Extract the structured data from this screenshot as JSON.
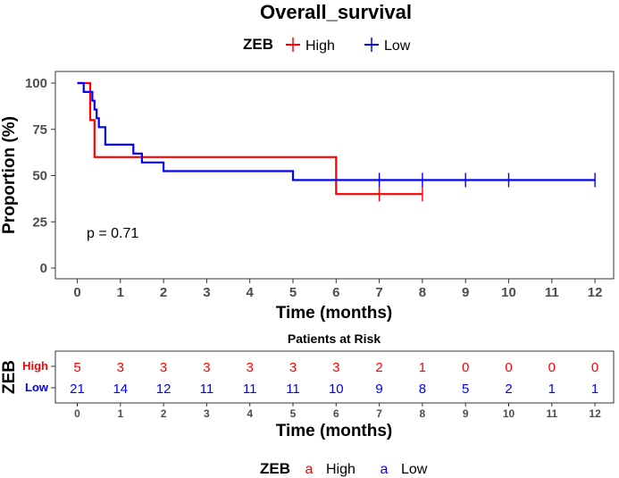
{
  "chart_data": [
    {
      "type": "line",
      "subtype": "kaplan-meier",
      "title": "Overall_survival",
      "xlabel": "Time (months)",
      "ylabel": "Proportion (%)",
      "xlim": [
        0,
        12
      ],
      "ylim": [
        0,
        100
      ],
      "x_ticks": [
        "0",
        "1",
        "2",
        "3",
        "4",
        "5",
        "6",
        "7",
        "8",
        "9",
        "10",
        "11",
        "12"
      ],
      "y_ticks": [
        "0",
        "25",
        "50",
        "75",
        "100"
      ],
      "grid": false,
      "annotation": "p = 0.71",
      "legend": {
        "title": "ZEB",
        "position": "top",
        "entries": [
          "High",
          "Low"
        ]
      },
      "series": [
        {
          "name": "High",
          "color": "#ff0000",
          "steps": [
            [
              0,
              100
            ],
            [
              0.3,
              100
            ],
            [
              0.3,
              80
            ],
            [
              0.4,
              80
            ],
            [
              0.4,
              60
            ],
            [
              6,
              60
            ],
            [
              6,
              40
            ],
            [
              8,
              40
            ]
          ],
          "censor_x": [
            7,
            8
          ]
        },
        {
          "name": "Low",
          "color": "#0000ff",
          "steps": [
            [
              0,
              100
            ],
            [
              0.15,
              100
            ],
            [
              0.15,
              95.2
            ],
            [
              0.35,
              95.2
            ],
            [
              0.35,
              90.5
            ],
            [
              0.4,
              90.5
            ],
            [
              0.4,
              85.7
            ],
            [
              0.45,
              85.7
            ],
            [
              0.45,
              81
            ],
            [
              0.5,
              81
            ],
            [
              0.5,
              76.2
            ],
            [
              0.65,
              76.2
            ],
            [
              0.65,
              66.7
            ],
            [
              1.3,
              66.7
            ],
            [
              1.3,
              61.9
            ],
            [
              1.5,
              61.9
            ],
            [
              1.5,
              57.1
            ],
            [
              2,
              57.1
            ],
            [
              2,
              52.4
            ],
            [
              5,
              52.4
            ],
            [
              5,
              47.6
            ],
            [
              12,
              47.6
            ]
          ],
          "censor_x": [
            7,
            8,
            9,
            10,
            12
          ]
        }
      ]
    },
    {
      "type": "table",
      "title": "Patients at Risk",
      "xlabel": "Time (months)",
      "ylabel": "ZEB",
      "columns": [
        "0",
        "1",
        "2",
        "3",
        "4",
        "5",
        "6",
        "7",
        "8",
        "9",
        "10",
        "11",
        "12"
      ],
      "rows": [
        {
          "name": "High",
          "color": "#ff0000",
          "values": [
            "5",
            "3",
            "3",
            "3",
            "3",
            "3",
            "3",
            "2",
            "1",
            "0",
            "0",
            "0",
            "0"
          ]
        },
        {
          "name": "Low",
          "color": "#0000ff",
          "values": [
            "21",
            "14",
            "12",
            "11",
            "11",
            "11",
            "10",
            "9",
            "8",
            "5",
            "2",
            "1",
            "1"
          ]
        }
      ]
    }
  ],
  "bottom_legend": {
    "title": "ZEB",
    "glyph": "a",
    "entries": [
      {
        "label": "High",
        "color": "#ff0000"
      },
      {
        "label": "Low",
        "color": "#0000ff"
      }
    ]
  }
}
